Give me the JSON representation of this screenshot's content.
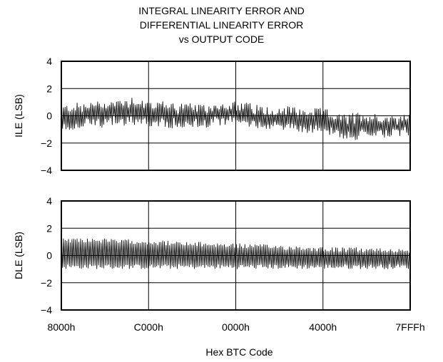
{
  "chart_data": {
    "type": "line",
    "title_lines": [
      "INTEGRAL LINEARITY ERROR AND",
      "DIFFERENTIAL LINEARITY ERROR",
      "vs OUTPUT CODE"
    ],
    "xlabel": "Hex BTC Code",
    "x_ticks": [
      "8000h",
      "C000h",
      "0000h",
      "4000h",
      "7FFFh"
    ],
    "grid": true,
    "panels": [
      {
        "ylabel": "ILE (LSB)",
        "ylim": [
          -4,
          4
        ],
        "y_ticks": [
          "4",
          "2",
          "0",
          "−2",
          "−4"
        ],
        "series": [
          {
            "envelope_x": [
              0,
              0.05,
              0.1,
              0.15,
              0.2,
              0.25,
              0.3,
              0.35,
              0.4,
              0.45,
              0.5,
              0.55,
              0.6,
              0.65,
              0.7,
              0.75,
              0.8,
              0.85,
              0.9,
              0.95,
              1.0
            ],
            "upper": [
              0.8,
              1.0,
              1.1,
              1.2,
              1.5,
              1.2,
              1.1,
              1.0,
              0.8,
              1.0,
              1.1,
              0.9,
              0.7,
              0.8,
              0.5,
              0.6,
              0.1,
              0.3,
              0.2,
              0.1,
              0.1
            ],
            "lower": [
              -1.2,
              -1.0,
              -0.9,
              -0.8,
              -0.7,
              -0.8,
              -1.0,
              -1.1,
              -0.9,
              -0.8,
              -0.7,
              -0.9,
              -1.0,
              -1.1,
              -1.3,
              -1.3,
              -1.7,
              -1.8,
              -1.7,
              -1.6,
              -1.5
            ]
          }
        ]
      },
      {
        "ylabel": "DLE (LSB)",
        "ylim": [
          -4,
          4
        ],
        "y_ticks": [
          "4",
          "2",
          "0",
          "−2",
          "−4"
        ],
        "series": [
          {
            "envelope_x": [
              0,
              0.05,
              0.1,
              0.15,
              0.2,
              0.25,
              0.3,
              0.35,
              0.4,
              0.45,
              0.5,
              0.55,
              0.6,
              0.65,
              0.7,
              0.75,
              0.8,
              0.85,
              0.9,
              0.95,
              1.0
            ],
            "upper": [
              1.3,
              1.3,
              1.3,
              1.2,
              1.2,
              1.15,
              1.1,
              1.0,
              1.0,
              0.95,
              0.9,
              0.85,
              0.8,
              0.75,
              0.7,
              0.65,
              0.6,
              0.6,
              0.55,
              0.55,
              0.5
            ],
            "lower": [
              -1.0,
              -1.0,
              -1.0,
              -1.0,
              -1.0,
              -1.0,
              -1.0,
              -1.0,
              -1.0,
              -1.0,
              -1.0,
              -1.0,
              -1.0,
              -1.0,
              -1.0,
              -1.0,
              -1.0,
              -1.0,
              -1.0,
              -1.0,
              -1.0
            ]
          }
        ]
      }
    ]
  }
}
